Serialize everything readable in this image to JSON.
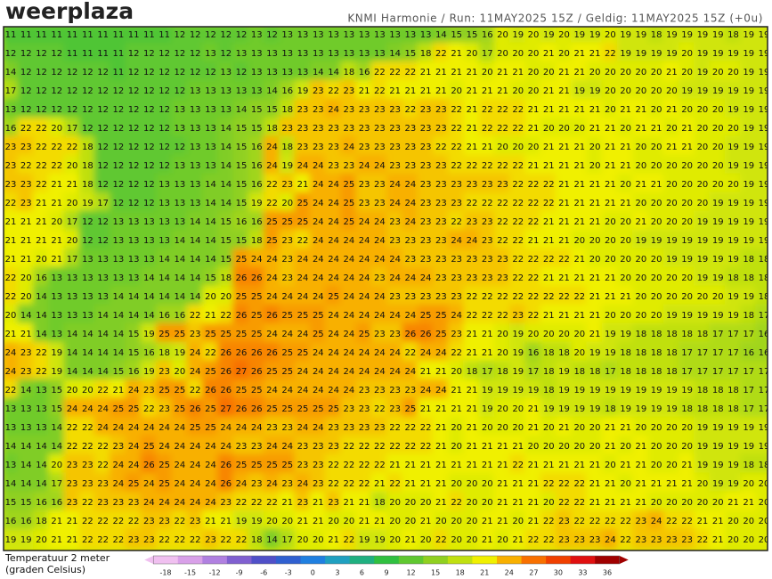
{
  "header": {
    "logo": "weerplaza",
    "info": "KNMI Harmonie / Run: 11MAY2025 15Z / Geldig: 11MAY2025 15Z (+0u)"
  },
  "legend": {
    "line1": "Temperatuur 2 meter",
    "line2": "(graden Celsius)"
  },
  "colorbar": {
    "ticks": [
      -18,
      -15,
      -12,
      -9,
      -6,
      -3,
      0,
      3,
      6,
      9,
      12,
      15,
      18,
      21,
      24,
      27,
      30,
      33,
      36
    ],
    "colors": [
      "#f0c0f0",
      "#d8a0e8",
      "#b080e0",
      "#8060d0",
      "#5050c8",
      "#3060d0",
      "#2080e0",
      "#20a0c0",
      "#20b080",
      "#30c040",
      "#60c830",
      "#90d020",
      "#c0e010",
      "#f0f000",
      "#f8b000",
      "#f87000",
      "#f04000",
      "#e01010",
      "#a00000"
    ]
  },
  "map": {
    "values": [
      [
        11,
        11,
        11,
        11,
        11,
        11,
        11,
        11,
        11,
        11,
        11,
        12,
        12,
        12,
        12,
        12,
        13,
        12,
        13,
        13,
        13,
        13,
        13,
        13,
        13,
        13,
        13,
        13,
        14,
        15,
        15,
        16,
        20,
        19,
        20,
        19,
        20,
        19,
        19,
        20,
        19,
        19,
        18,
        19,
        19,
        19,
        19,
        18,
        19,
        19
      ],
      [
        12,
        12,
        12,
        12,
        11,
        11,
        11,
        11,
        12,
        12,
        12,
        12,
        12,
        13,
        12,
        13,
        13,
        13,
        13,
        13,
        13,
        13,
        13,
        13,
        13,
        14,
        15,
        18,
        22,
        21,
        20,
        17,
        20,
        20,
        20,
        21,
        20,
        21,
        21,
        22,
        19,
        19,
        19,
        19,
        20,
        19,
        19,
        19,
        19,
        19
      ],
      [
        14,
        12,
        12,
        12,
        12,
        12,
        12,
        11,
        12,
        12,
        12,
        12,
        12,
        12,
        13,
        12,
        13,
        13,
        13,
        13,
        14,
        14,
        18,
        16,
        22,
        22,
        22,
        21,
        21,
        21,
        21,
        20,
        21,
        21,
        20,
        20,
        21,
        21,
        20,
        20,
        20,
        20,
        20,
        21,
        20,
        19,
        20,
        20,
        19,
        19
      ],
      [
        17,
        12,
        12,
        12,
        12,
        12,
        12,
        12,
        12,
        12,
        12,
        12,
        13,
        13,
        13,
        13,
        13,
        14,
        16,
        19,
        23,
        22,
        23,
        21,
        22,
        21,
        21,
        21,
        21,
        20,
        21,
        21,
        21,
        20,
        20,
        21,
        21,
        19,
        19,
        20,
        20,
        20,
        20,
        20,
        19,
        19,
        19,
        19,
        19,
        19
      ],
      [
        13,
        12,
        12,
        12,
        12,
        12,
        12,
        12,
        12,
        12,
        12,
        13,
        13,
        13,
        13,
        14,
        15,
        15,
        18,
        23,
        23,
        24,
        23,
        23,
        23,
        23,
        22,
        23,
        23,
        22,
        21,
        22,
        22,
        22,
        21,
        21,
        21,
        21,
        21,
        20,
        21,
        21,
        20,
        21,
        20,
        20,
        20,
        19,
        19,
        19
      ],
      [
        16,
        22,
        22,
        20,
        17,
        12,
        12,
        12,
        12,
        12,
        12,
        13,
        13,
        13,
        14,
        15,
        15,
        18,
        23,
        23,
        23,
        23,
        23,
        23,
        23,
        23,
        23,
        23,
        23,
        22,
        21,
        22,
        22,
        22,
        21,
        20,
        20,
        20,
        21,
        21,
        20,
        21,
        21,
        20,
        21,
        20,
        20,
        20,
        19,
        19
      ],
      [
        23,
        23,
        22,
        22,
        22,
        18,
        12,
        12,
        12,
        12,
        12,
        12,
        13,
        13,
        14,
        15,
        16,
        24,
        18,
        23,
        23,
        23,
        24,
        23,
        23,
        23,
        23,
        23,
        22,
        22,
        21,
        21,
        20,
        20,
        20,
        21,
        21,
        21,
        20,
        21,
        21,
        20,
        20,
        21,
        21,
        20,
        20,
        19,
        19,
        19
      ],
      [
        23,
        22,
        22,
        22,
        20,
        18,
        12,
        12,
        12,
        12,
        12,
        13,
        13,
        13,
        14,
        15,
        16,
        24,
        19,
        24,
        24,
        23,
        23,
        24,
        24,
        23,
        23,
        23,
        23,
        22,
        22,
        22,
        22,
        22,
        21,
        21,
        21,
        21,
        20,
        21,
        21,
        20,
        20,
        20,
        20,
        20,
        20,
        19,
        19,
        19
      ],
      [
        23,
        23,
        22,
        21,
        21,
        18,
        12,
        12,
        12,
        12,
        13,
        13,
        13,
        14,
        14,
        15,
        16,
        22,
        23,
        21,
        24,
        24,
        25,
        23,
        23,
        24,
        24,
        23,
        23,
        23,
        23,
        23,
        23,
        22,
        22,
        22,
        21,
        21,
        21,
        21,
        20,
        21,
        21,
        20,
        20,
        20,
        20,
        20,
        19,
        19
      ],
      [
        22,
        23,
        21,
        21,
        20,
        19,
        17,
        12,
        12,
        12,
        13,
        13,
        13,
        14,
        14,
        15,
        19,
        22,
        20,
        25,
        24,
        24,
        25,
        23,
        23,
        24,
        24,
        23,
        23,
        23,
        22,
        22,
        22,
        22,
        22,
        22,
        21,
        21,
        21,
        21,
        21,
        20,
        20,
        20,
        20,
        20,
        19,
        19,
        19,
        19
      ],
      [
        21,
        21,
        21,
        20,
        17,
        12,
        12,
        13,
        13,
        13,
        13,
        13,
        14,
        14,
        15,
        16,
        16,
        25,
        25,
        25,
        24,
        24,
        25,
        24,
        24,
        23,
        24,
        23,
        23,
        22,
        23,
        23,
        22,
        22,
        22,
        21,
        21,
        21,
        21,
        20,
        20,
        21,
        20,
        20,
        20,
        19,
        19,
        19,
        19,
        19
      ],
      [
        21,
        21,
        21,
        21,
        20,
        12,
        12,
        13,
        13,
        13,
        13,
        14,
        14,
        14,
        15,
        15,
        18,
        25,
        23,
        22,
        24,
        24,
        24,
        24,
        24,
        23,
        23,
        23,
        23,
        24,
        24,
        23,
        22,
        22,
        21,
        21,
        21,
        20,
        20,
        20,
        20,
        19,
        19,
        19,
        19,
        19,
        19,
        19,
        19,
        19
      ],
      [
        21,
        21,
        20,
        21,
        17,
        13,
        13,
        13,
        13,
        13,
        14,
        14,
        14,
        14,
        15,
        25,
        24,
        24,
        23,
        24,
        24,
        24,
        24,
        24,
        24,
        24,
        23,
        23,
        23,
        23,
        23,
        23,
        23,
        22,
        22,
        22,
        22,
        21,
        20,
        20,
        20,
        20,
        20,
        19,
        19,
        19,
        19,
        19,
        18,
        18
      ],
      [
        22,
        20,
        16,
        13,
        13,
        13,
        13,
        13,
        13,
        14,
        14,
        14,
        14,
        15,
        18,
        26,
        26,
        24,
        23,
        24,
        24,
        24,
        24,
        24,
        23,
        24,
        24,
        24,
        23,
        23,
        23,
        23,
        23,
        22,
        22,
        21,
        21,
        21,
        21,
        21,
        20,
        20,
        20,
        20,
        20,
        19,
        19,
        18,
        18,
        18
      ],
      [
        22,
        20,
        14,
        13,
        13,
        13,
        13,
        14,
        14,
        14,
        14,
        14,
        14,
        20,
        20,
        25,
        25,
        24,
        24,
        24,
        24,
        25,
        24,
        24,
        24,
        23,
        23,
        23,
        23,
        23,
        22,
        22,
        22,
        22,
        22,
        22,
        22,
        22,
        21,
        21,
        21,
        20,
        20,
        20,
        20,
        20,
        20,
        19,
        19,
        18
      ],
      [
        20,
        14,
        14,
        13,
        13,
        13,
        14,
        14,
        14,
        14,
        16,
        16,
        22,
        21,
        22,
        26,
        25,
        26,
        25,
        25,
        25,
        24,
        24,
        24,
        24,
        24,
        24,
        25,
        25,
        24,
        22,
        22,
        22,
        23,
        22,
        21,
        21,
        21,
        21,
        20,
        20,
        20,
        20,
        19,
        19,
        19,
        19,
        19,
        18,
        17
      ],
      [
        21,
        21,
        14,
        13,
        14,
        14,
        14,
        14,
        15,
        19,
        25,
        25,
        23,
        25,
        25,
        25,
        25,
        24,
        24,
        24,
        25,
        24,
        24,
        25,
        23,
        23,
        26,
        26,
        25,
        23,
        21,
        21,
        20,
        19,
        20,
        20,
        20,
        20,
        21,
        19,
        19,
        18,
        18,
        18,
        18,
        18,
        17,
        17,
        17,
        16
      ],
      [
        24,
        23,
        22,
        19,
        14,
        14,
        14,
        14,
        15,
        16,
        18,
        19,
        24,
        22,
        26,
        26,
        26,
        26,
        25,
        25,
        24,
        24,
        24,
        24,
        24,
        24,
        22,
        24,
        24,
        22,
        21,
        21,
        20,
        19,
        16,
        18,
        18,
        20,
        19,
        19,
        18,
        18,
        18,
        18,
        17,
        17,
        17,
        17,
        16,
        16
      ],
      [
        24,
        23,
        22,
        19,
        14,
        14,
        14,
        15,
        16,
        19,
        23,
        20,
        24,
        25,
        26,
        27,
        26,
        25,
        25,
        24,
        24,
        24,
        24,
        24,
        24,
        24,
        24,
        21,
        21,
        20,
        18,
        17,
        18,
        19,
        17,
        18,
        19,
        18,
        18,
        17,
        18,
        18,
        18,
        18,
        17,
        17,
        17,
        17,
        17,
        17
      ],
      [
        22,
        14,
        13,
        15,
        20,
        20,
        22,
        21,
        24,
        23,
        25,
        25,
        22,
        26,
        26,
        25,
        25,
        24,
        24,
        24,
        24,
        24,
        24,
        23,
        23,
        23,
        23,
        24,
        24,
        21,
        21,
        19,
        19,
        19,
        19,
        18,
        19,
        19,
        19,
        19,
        19,
        19,
        19,
        19,
        19,
        18,
        18,
        18,
        17,
        17
      ],
      [
        13,
        13,
        13,
        15,
        24,
        24,
        24,
        25,
        25,
        22,
        23,
        25,
        26,
        25,
        27,
        26,
        26,
        25,
        25,
        25,
        25,
        25,
        23,
        23,
        22,
        23,
        25,
        21,
        21,
        21,
        21,
        19,
        20,
        20,
        21,
        19,
        19,
        19,
        19,
        18,
        19,
        19,
        19,
        19,
        18,
        18,
        18,
        18,
        17,
        17
      ],
      [
        13,
        13,
        13,
        14,
        22,
        22,
        24,
        24,
        24,
        24,
        24,
        24,
        25,
        25,
        24,
        24,
        24,
        23,
        23,
        24,
        24,
        23,
        23,
        23,
        23,
        22,
        22,
        22,
        21,
        20,
        21,
        20,
        20,
        20,
        21,
        20,
        21,
        20,
        20,
        21,
        21,
        20,
        20,
        20,
        20,
        19,
        19,
        19,
        19,
        19
      ],
      [
        14,
        14,
        14,
        14,
        22,
        22,
        22,
        23,
        24,
        25,
        24,
        24,
        24,
        24,
        24,
        23,
        23,
        24,
        24,
        23,
        23,
        23,
        22,
        22,
        22,
        22,
        22,
        22,
        21,
        20,
        21,
        21,
        21,
        21,
        20,
        20,
        20,
        20,
        20,
        21,
        20,
        21,
        20,
        20,
        20,
        19,
        19,
        19,
        19,
        19
      ],
      [
        13,
        14,
        14,
        20,
        23,
        23,
        22,
        24,
        24,
        26,
        25,
        24,
        24,
        24,
        26,
        25,
        25,
        25,
        25,
        23,
        23,
        22,
        22,
        22,
        22,
        21,
        21,
        21,
        21,
        21,
        21,
        21,
        21,
        22,
        21,
        21,
        21,
        21,
        21,
        20,
        21,
        21,
        20,
        20,
        21,
        19,
        19,
        19,
        18,
        18
      ],
      [
        14,
        14,
        14,
        17,
        23,
        23,
        23,
        24,
        25,
        24,
        25,
        24,
        24,
        24,
        26,
        24,
        23,
        24,
        23,
        24,
        23,
        22,
        22,
        22,
        21,
        22,
        21,
        21,
        21,
        20,
        20,
        20,
        21,
        21,
        21,
        22,
        22,
        22,
        21,
        21,
        20,
        21,
        21,
        21,
        21,
        20,
        19,
        19,
        20,
        20
      ],
      [
        15,
        15,
        16,
        16,
        23,
        22,
        23,
        23,
        23,
        24,
        24,
        24,
        24,
        24,
        23,
        22,
        22,
        22,
        21,
        23,
        21,
        23,
        21,
        21,
        18,
        20,
        20,
        20,
        21,
        22,
        20,
        20,
        21,
        21,
        21,
        20,
        22,
        22,
        21,
        21,
        21,
        21,
        20,
        20,
        20,
        20,
        20,
        21,
        21,
        20
      ],
      [
        16,
        16,
        18,
        21,
        21,
        22,
        22,
        22,
        22,
        23,
        23,
        22,
        23,
        21,
        21,
        19,
        19,
        20,
        20,
        21,
        21,
        20,
        20,
        21,
        21,
        20,
        20,
        21,
        20,
        20,
        20,
        21,
        21,
        20,
        21,
        22,
        23,
        22,
        22,
        22,
        22,
        23,
        24,
        22,
        22,
        21,
        21,
        20,
        20,
        20
      ],
      [
        19,
        19,
        20,
        21,
        21,
        22,
        22,
        22,
        23,
        23,
        22,
        22,
        22,
        23,
        22,
        22,
        18,
        14,
        17,
        20,
        20,
        21,
        22,
        19,
        19,
        20,
        21,
        20,
        22,
        20,
        20,
        21,
        20,
        21,
        22,
        22,
        23,
        23,
        23,
        24,
        22,
        23,
        23,
        23,
        23,
        22,
        21,
        20,
        20,
        20
      ]
    ]
  }
}
